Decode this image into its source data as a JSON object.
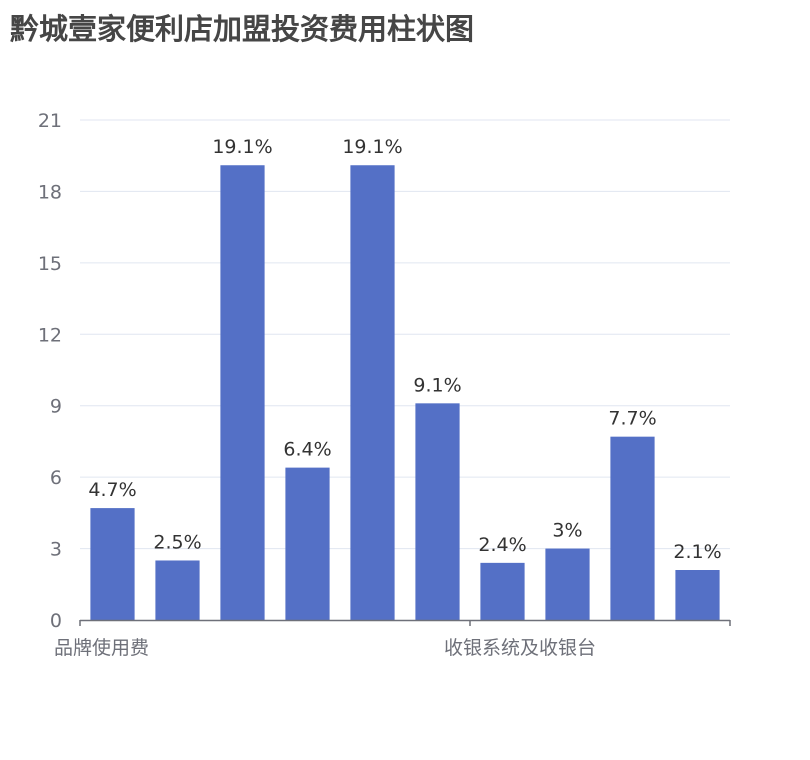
{
  "title": "黔城壹家便利店加盟投资费用柱状图",
  "colors": {
    "bar": "#5470c6",
    "grid": "#e0e6f1",
    "axis": "#6e7079",
    "label": "#333333",
    "title": "#464646"
  },
  "chart_data": {
    "type": "bar",
    "title": "黔城壹家便利店加盟投资费用柱状图",
    "categories": [
      "品牌使用费",
      "",
      "",
      "",
      "",
      "",
      "收银系统及收银台",
      "",
      "",
      ""
    ],
    "visible_category_labels": [
      {
        "index": 0,
        "label": "品牌使用费"
      },
      {
        "index": 6,
        "label": "收银系统及收银台"
      }
    ],
    "values": [
      4.7,
      2.5,
      19.1,
      6.4,
      19.1,
      9.1,
      2.4,
      3.0,
      7.7,
      2.1
    ],
    "value_labels": [
      "4.7%",
      "2.5%",
      "19.1%",
      "6.4%",
      "19.1%",
      "9.1%",
      "2.4%",
      "3%",
      "7.7%",
      "2.1%"
    ],
    "xlabel": "",
    "ylabel": "",
    "ylim": [
      0,
      21
    ],
    "yticks": [
      0,
      3,
      6,
      9,
      12,
      15,
      18,
      21
    ],
    "grid": true,
    "legend": null
  }
}
